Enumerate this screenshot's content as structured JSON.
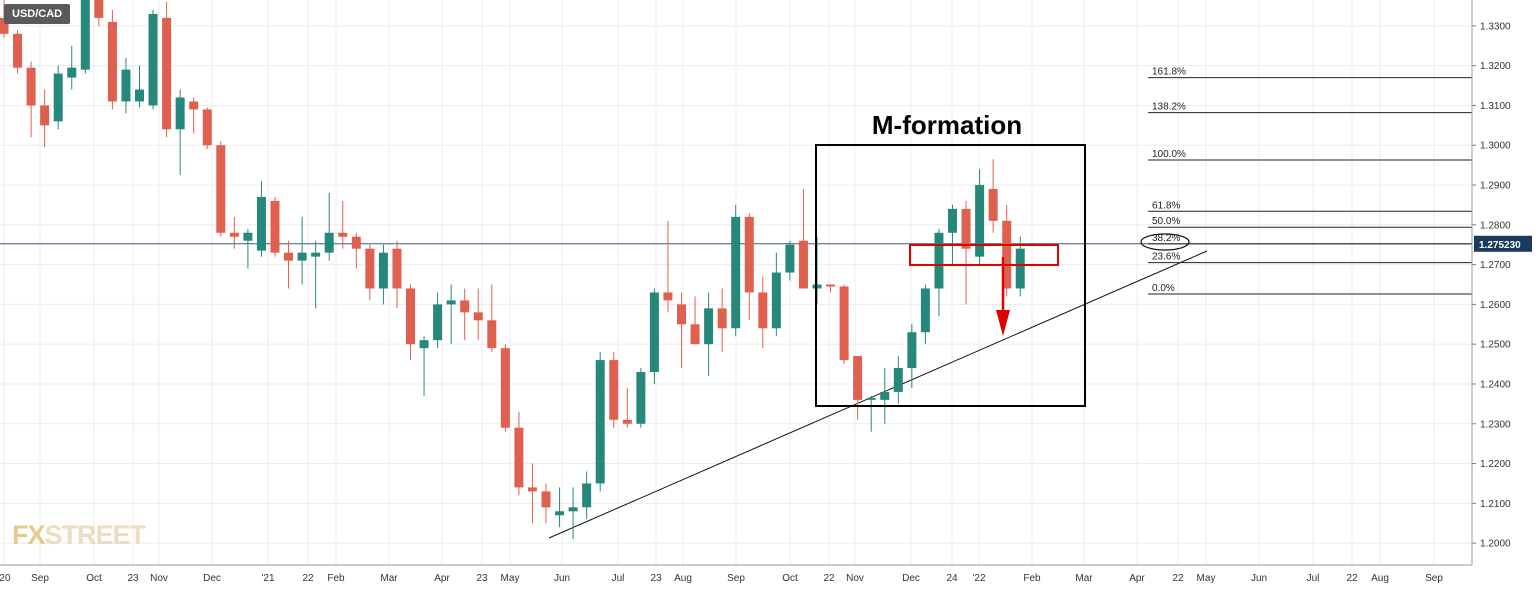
{
  "symbol": "USD/CAD",
  "logo": {
    "left": "FX",
    "right": "STREET"
  },
  "colors": {
    "up": "#26887a",
    "down": "#e0604f",
    "grid": "#ececec",
    "box": "#000000",
    "arrow": "#e00000",
    "price_badge": "#1b3a5e"
  },
  "chart_data": {
    "type": "candlestick",
    "title": "",
    "annotation": "M-formation",
    "current_price": "1.275230",
    "y_ticks": [
      "1.2000",
      "1.2100",
      "1.2200",
      "1.2300",
      "1.2400",
      "1.2500",
      "1.2600",
      "1.2700",
      "1.2800",
      "1.2900",
      "1.3000",
      "1.3100",
      "1.3200",
      "1.3300"
    ],
    "ylim": [
      1.1945,
      1.3365
    ],
    "x_ticks": [
      "'20",
      "Sep",
      "Oct",
      "23",
      "Nov",
      "Dec",
      "'21",
      "22",
      "Feb",
      "Mar",
      "Apr",
      "23",
      "May",
      "Jun",
      "Jul",
      "23",
      "Aug",
      "Sep",
      "Oct",
      "22",
      "Nov",
      "Dec",
      "24",
      "'22",
      "Feb",
      "Mar",
      "Apr",
      "22",
      "May",
      "Jun",
      "Jul",
      "22",
      "Aug",
      "Sep"
    ],
    "fib_levels": [
      {
        "label": "161.8%",
        "value": 1.317
      },
      {
        "label": "138.2%",
        "value": 1.3082
      },
      {
        "label": "100.0%",
        "value": 1.2963
      },
      {
        "label": "61.8%",
        "value": 1.2834
      },
      {
        "label": "50.0%",
        "value": 1.2794
      },
      {
        "label": "38.2%",
        "value": 1.2752
      },
      {
        "label": "23.6%",
        "value": 1.2705
      },
      {
        "label": "0.0%",
        "value": 1.2626
      }
    ],
    "candles": [
      [
        1.332,
        1.3365,
        1.327,
        1.328
      ],
      [
        1.328,
        1.329,
        1.318,
        1.3195
      ],
      [
        1.3195,
        1.321,
        1.302,
        1.31
      ],
      [
        1.31,
        1.314,
        1.2995,
        1.305
      ],
      [
        1.306,
        1.32,
        1.304,
        1.318
      ],
      [
        1.317,
        1.325,
        1.314,
        1.3195
      ],
      [
        1.319,
        1.339,
        1.318,
        1.337
      ],
      [
        1.337,
        1.338,
        1.33,
        1.332
      ],
      [
        1.331,
        1.334,
        1.309,
        1.311
      ],
      [
        1.311,
        1.322,
        1.308,
        1.319
      ],
      [
        1.311,
        1.32,
        1.3095,
        1.314
      ],
      [
        1.31,
        1.334,
        1.309,
        1.333
      ],
      [
        1.332,
        1.336,
        1.302,
        1.304
      ],
      [
        1.304,
        1.314,
        1.2925,
        1.312
      ],
      [
        1.311,
        1.312,
        1.303,
        1.309
      ],
      [
        1.309,
        1.3095,
        1.299,
        1.3
      ],
      [
        1.3,
        1.301,
        1.277,
        1.278
      ],
      [
        1.278,
        1.282,
        1.274,
        1.277
      ],
      [
        1.276,
        1.279,
        1.269,
        1.278
      ],
      [
        1.2735,
        1.291,
        1.272,
        1.287
      ],
      [
        1.286,
        1.287,
        1.272,
        1.273
      ],
      [
        1.273,
        1.276,
        1.264,
        1.271
      ],
      [
        1.271,
        1.282,
        1.265,
        1.273
      ],
      [
        1.272,
        1.276,
        1.259,
        1.273
      ],
      [
        1.273,
        1.288,
        1.271,
        1.278
      ],
      [
        1.278,
        1.286,
        1.274,
        1.277
      ],
      [
        1.277,
        1.278,
        1.269,
        1.274
      ],
      [
        1.274,
        1.275,
        1.261,
        1.264
      ],
      [
        1.264,
        1.275,
        1.26,
        1.273
      ],
      [
        1.274,
        1.276,
        1.259,
        1.264
      ],
      [
        1.264,
        1.265,
        1.246,
        1.25
      ],
      [
        1.249,
        1.252,
        1.237,
        1.251
      ],
      [
        1.251,
        1.263,
        1.249,
        1.26
      ],
      [
        1.26,
        1.265,
        1.25,
        1.261
      ],
      [
        1.261,
        1.264,
        1.251,
        1.258
      ],
      [
        1.258,
        1.264,
        1.251,
        1.256
      ],
      [
        1.256,
        1.265,
        1.248,
        1.249
      ],
      [
        1.249,
        1.25,
        1.228,
        1.229
      ],
      [
        1.229,
        1.233,
        1.212,
        1.214
      ],
      [
        1.214,
        1.22,
        1.205,
        1.213
      ],
      [
        1.213,
        1.215,
        1.205,
        1.209
      ],
      [
        1.207,
        1.214,
        1.204,
        1.208
      ],
      [
        1.208,
        1.214,
        1.201,
        1.209
      ],
      [
        1.209,
        1.218,
        1.206,
        1.215
      ],
      [
        1.215,
        1.248,
        1.213,
        1.246
      ],
      [
        1.246,
        1.248,
        1.229,
        1.231
      ],
      [
        1.231,
        1.239,
        1.229,
        1.23
      ],
      [
        1.23,
        1.244,
        1.229,
        1.243
      ],
      [
        1.243,
        1.264,
        1.24,
        1.263
      ],
      [
        1.263,
        1.281,
        1.258,
        1.261
      ],
      [
        1.26,
        1.263,
        1.244,
        1.255
      ],
      [
        1.255,
        1.262,
        1.25,
        1.25
      ],
      [
        1.25,
        1.263,
        1.242,
        1.259
      ],
      [
        1.259,
        1.264,
        1.248,
        1.254
      ],
      [
        1.254,
        1.285,
        1.252,
        1.282
      ],
      [
        1.282,
        1.283,
        1.256,
        1.263
      ],
      [
        1.263,
        1.267,
        1.249,
        1.254
      ],
      [
        1.254,
        1.273,
        1.252,
        1.268
      ],
      [
        1.268,
        1.276,
        1.266,
        1.275
      ],
      [
        1.276,
        1.289,
        1.264,
        1.264
      ],
      [
        1.264,
        1.277,
        1.26,
        1.265
      ],
      [
        1.265,
        1.265,
        1.263,
        1.2645
      ],
      [
        1.2645,
        1.265,
        1.245,
        1.246
      ],
      [
        1.247,
        1.247,
        1.231,
        1.236
      ],
      [
        1.236,
        1.237,
        1.228,
        1.2365
      ],
      [
        1.236,
        1.244,
        1.23,
        1.238
      ],
      [
        1.238,
        1.247,
        1.235,
        1.244
      ],
      [
        1.244,
        1.255,
        1.239,
        1.253
      ],
      [
        1.253,
        1.265,
        1.25,
        1.264
      ],
      [
        1.264,
        1.279,
        1.257,
        1.278
      ],
      [
        1.278,
        1.285,
        1.27,
        1.284
      ],
      [
        1.284,
        1.286,
        1.26,
        1.274
      ],
      [
        1.272,
        1.294,
        1.27,
        1.29
      ],
      [
        1.289,
        1.2965,
        1.278,
        1.281
      ],
      [
        1.281,
        1.285,
        1.262,
        1.264
      ],
      [
        1.264,
        1.277,
        1.262,
        1.274
      ]
    ]
  }
}
